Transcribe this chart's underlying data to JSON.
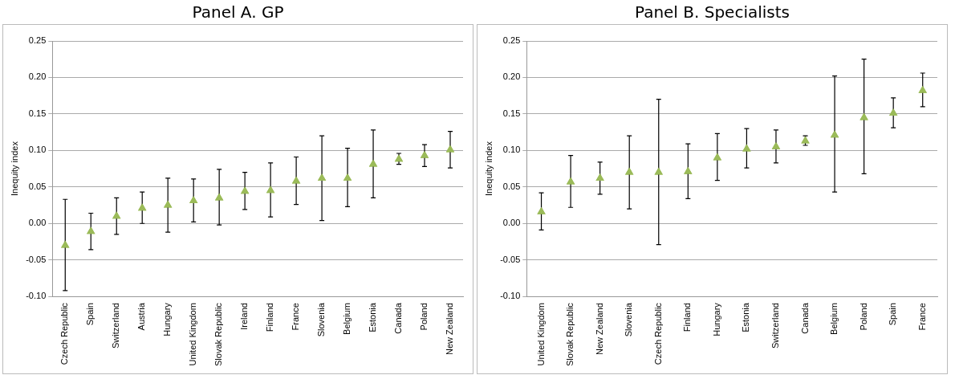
{
  "chart_data": [
    {
      "type": "scatter",
      "title": "Panel A. GP",
      "ylabel": "Inequity index",
      "marker": "triangle",
      "grid": "y",
      "color": "#9bbb59",
      "categories": [
        "Czech Republic",
        "Spain",
        "Switzerland",
        "Austria",
        "Hungary",
        "United Kingdom",
        "Slovak Republic",
        "Ireland",
        "Finland",
        "France",
        "Slovenia",
        "Belgium",
        "Estonia",
        "Canada",
        "Poland",
        "New Zealand"
      ],
      "values": [
        -0.03,
        -0.011,
        0.01,
        0.021,
        0.025,
        0.031,
        0.035,
        0.044,
        0.045,
        0.058,
        0.062,
        0.062,
        0.081,
        0.088,
        0.093,
        0.101
      ],
      "errors": [
        [
          -0.092,
          0.033
        ],
        [
          -0.036,
          0.014
        ],
        [
          -0.015,
          0.035
        ],
        [
          0.0,
          0.043
        ],
        [
          -0.012,
          0.062
        ],
        [
          0.002,
          0.061
        ],
        [
          -0.002,
          0.074
        ],
        [
          0.019,
          0.07
        ],
        [
          0.009,
          0.083
        ],
        [
          0.026,
          0.091
        ],
        [
          0.004,
          0.12
        ],
        [
          0.023,
          0.103
        ],
        [
          0.035,
          0.128
        ],
        [
          0.081,
          0.096
        ],
        [
          0.078,
          0.108
        ],
        [
          0.076,
          0.126
        ]
      ],
      "ylim": [
        -0.1,
        0.25
      ],
      "yticks": [
        {
          "value": -0.1,
          "label": "-0.10"
        },
        {
          "value": -0.05,
          "label": "-0.05"
        },
        {
          "value": 0,
          "label": "0.00"
        },
        {
          "value": 0.05,
          "label": "0.05"
        },
        {
          "value": 0.1,
          "label": "0.10"
        },
        {
          "value": 0.15,
          "label": "0.15"
        },
        {
          "value": 0.2,
          "label": "0.20"
        },
        {
          "value": 0.25,
          "label": "0.25"
        }
      ]
    },
    {
      "type": "scatter",
      "title": "Panel B. Specialists",
      "ylabel": "Inequity index",
      "marker": "triangle",
      "grid": "y",
      "color": "#9bbb59",
      "categories": [
        "United Kingdom",
        "Slovak Republic",
        "New Zealand",
        "Slovenia",
        "Czech Republic",
        "Finland",
        "Hungary",
        "Estonia",
        "Switzerland",
        "Canada",
        "Belgium",
        "Poland",
        "Spain",
        "France"
      ],
      "values": [
        0.016,
        0.057,
        0.062,
        0.07,
        0.07,
        0.071,
        0.09,
        0.102,
        0.105,
        0.113,
        0.121,
        0.145,
        0.151,
        0.182
      ],
      "errors": [
        [
          -0.009,
          0.042
        ],
        [
          0.022,
          0.093
        ],
        [
          0.04,
          0.084
        ],
        [
          0.02,
          0.12
        ],
        [
          -0.029,
          0.17
        ],
        [
          0.034,
          0.109
        ],
        [
          0.059,
          0.123
        ],
        [
          0.076,
          0.13
        ],
        [
          0.083,
          0.128
        ],
        [
          0.107,
          0.12
        ],
        [
          0.043,
          0.202
        ],
        [
          0.068,
          0.225
        ],
        [
          0.131,
          0.172
        ],
        [
          0.16,
          0.206
        ]
      ],
      "ylim": [
        -0.1,
        0.25
      ],
      "yticks": [
        {
          "value": -0.1,
          "label": "-0.10"
        },
        {
          "value": -0.05,
          "label": "-0.05"
        },
        {
          "value": 0,
          "label": "0.00"
        },
        {
          "value": 0.05,
          "label": "0.05"
        },
        {
          "value": 0.1,
          "label": "0.10"
        },
        {
          "value": 0.15,
          "label": "0.15"
        },
        {
          "value": 0.2,
          "label": "0.20"
        },
        {
          "value": 0.25,
          "label": "0.25"
        }
      ]
    }
  ]
}
